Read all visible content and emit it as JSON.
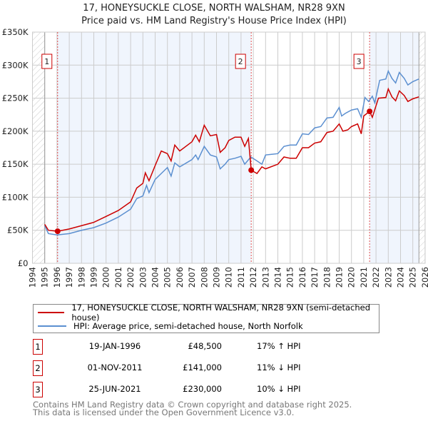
{
  "title": "17, HONEYSUCKLE CLOSE, NORTH WALSHAM, NR28 9XN",
  "subtitle": "Price paid vs. HM Land Registry's House Price Index (HPI)",
  "chart_data": {
    "type": "line",
    "title": "17, HONEYSUCKLE CLOSE, NORTH WALSHAM, NR28 9XN",
    "subtitle": "Price paid vs. HM Land Registry's House Price Index (HPI)",
    "xlim": [
      1994,
      2026
    ],
    "ylim": [
      0,
      350000
    ],
    "x_ticks": [
      "1994",
      "1995",
      "1996",
      "1997",
      "1998",
      "1999",
      "2000",
      "2001",
      "2002",
      "2003",
      "2004",
      "2005",
      "2006",
      "2007",
      "2008",
      "2009",
      "2010",
      "2011",
      "2012",
      "2013",
      "2014",
      "2015",
      "2016",
      "2017",
      "2018",
      "2019",
      "2020",
      "2021",
      "2022",
      "2023",
      "2024",
      "2025",
      "2026"
    ],
    "y_ticks": [
      {
        "v": 0,
        "label": "£0"
      },
      {
        "v": 50000,
        "label": "£50K"
      },
      {
        "v": 100000,
        "label": "£100K"
      },
      {
        "v": 150000,
        "label": "£150K"
      },
      {
        "v": 200000,
        "label": "£200K"
      },
      {
        "v": 250000,
        "label": "£250K"
      },
      {
        "v": 300000,
        "label": "£300K"
      },
      {
        "v": 350000,
        "label": "£350K"
      }
    ],
    "grid": true,
    "series": [
      {
        "name": "17, HONEYSUCKLE CLOSE, NORTH WALSHAM, NR28 9XN (semi-detached house)",
        "color": "#cc0000",
        "points": [
          [
            1995,
            59
          ],
          [
            1995.3,
            50
          ],
          [
            1996.05,
            48.5
          ],
          [
            1997,
            52
          ],
          [
            1998,
            57
          ],
          [
            1999,
            62
          ],
          [
            2000,
            71
          ],
          [
            2001,
            80
          ],
          [
            2002,
            93
          ],
          [
            2002.5,
            114
          ],
          [
            2003,
            121
          ],
          [
            2003.2,
            137
          ],
          [
            2003.5,
            125
          ],
          [
            2004,
            148
          ],
          [
            2004.5,
            170
          ],
          [
            2005,
            166
          ],
          [
            2005.3,
            155
          ],
          [
            2005.6,
            179
          ],
          [
            2006,
            170
          ],
          [
            2007,
            184
          ],
          [
            2007.3,
            194
          ],
          [
            2007.6,
            184
          ],
          [
            2008,
            209
          ],
          [
            2008.5,
            193
          ],
          [
            2009,
            195
          ],
          [
            2009.3,
            168
          ],
          [
            2009.7,
            175
          ],
          [
            2010,
            186
          ],
          [
            2010.5,
            191
          ],
          [
            2011,
            191
          ],
          [
            2011.3,
            177
          ],
          [
            2011.6,
            189
          ],
          [
            2011.83,
            141
          ],
          [
            2012.3,
            136
          ],
          [
            2012.7,
            146
          ],
          [
            2013,
            143
          ],
          [
            2014,
            150
          ],
          [
            2014.5,
            161
          ],
          [
            2015,
            159
          ],
          [
            2015.5,
            159
          ],
          [
            2016,
            175
          ],
          [
            2016.5,
            175
          ],
          [
            2017,
            182
          ],
          [
            2017.5,
            184
          ],
          [
            2018,
            198
          ],
          [
            2018.5,
            200
          ],
          [
            2019,
            211
          ],
          [
            2019.3,
            200
          ],
          [
            2019.7,
            202
          ],
          [
            2020,
            207
          ],
          [
            2020.5,
            211
          ],
          [
            2020.8,
            196
          ],
          [
            2021,
            223
          ],
          [
            2021.48,
            230
          ],
          [
            2021.7,
            221
          ],
          [
            2022.2,
            250
          ],
          [
            2022.8,
            251
          ],
          [
            2023,
            264
          ],
          [
            2023.3,
            252
          ],
          [
            2023.6,
            246
          ],
          [
            2023.9,
            261
          ],
          [
            2024.3,
            254
          ],
          [
            2024.6,
            245
          ],
          [
            2025,
            249
          ],
          [
            2025.5,
            252
          ]
        ]
      },
      {
        "name": "HPI: Average price, semi-detached house, North Norfolk",
        "color": "#5b8fd0",
        "points": [
          [
            1995,
            57
          ],
          [
            1995.3,
            45
          ],
          [
            1996,
            43
          ],
          [
            1997,
            45
          ],
          [
            1998,
            50
          ],
          [
            1999,
            54
          ],
          [
            2000,
            61
          ],
          [
            2001,
            70
          ],
          [
            2002,
            82
          ],
          [
            2002.5,
            98
          ],
          [
            2003,
            102
          ],
          [
            2003.3,
            118
          ],
          [
            2003.5,
            107
          ],
          [
            2004,
            127
          ],
          [
            2004.5,
            136
          ],
          [
            2005,
            145
          ],
          [
            2005.3,
            132
          ],
          [
            2005.6,
            152
          ],
          [
            2006,
            146
          ],
          [
            2007,
            157
          ],
          [
            2007.3,
            164
          ],
          [
            2007.5,
            157
          ],
          [
            2008,
            177
          ],
          [
            2008.5,
            164
          ],
          [
            2009,
            161
          ],
          [
            2009.3,
            143
          ],
          [
            2009.7,
            150
          ],
          [
            2010,
            157
          ],
          [
            2010.5,
            159
          ],
          [
            2011,
            162
          ],
          [
            2011.3,
            150
          ],
          [
            2011.8,
            161
          ],
          [
            2012.3,
            155
          ],
          [
            2012.7,
            150
          ],
          [
            2013,
            164
          ],
          [
            2014,
            166
          ],
          [
            2014.5,
            177
          ],
          [
            2015,
            179
          ],
          [
            2015.5,
            179
          ],
          [
            2016,
            196
          ],
          [
            2016.5,
            195
          ],
          [
            2017,
            205
          ],
          [
            2017.5,
            207
          ],
          [
            2018,
            220
          ],
          [
            2018.5,
            221
          ],
          [
            2019,
            236
          ],
          [
            2019.2,
            223
          ],
          [
            2019.5,
            227
          ],
          [
            2020,
            232
          ],
          [
            2020.5,
            234
          ],
          [
            2020.8,
            221
          ],
          [
            2021.1,
            251
          ],
          [
            2021.4,
            245
          ],
          [
            2021.7,
            253
          ],
          [
            2021.9,
            243
          ],
          [
            2022.3,
            277
          ],
          [
            2022.8,
            279
          ],
          [
            2023,
            291
          ],
          [
            2023.3,
            280
          ],
          [
            2023.6,
            273
          ],
          [
            2023.9,
            289
          ],
          [
            2024.3,
            280
          ],
          [
            2024.6,
            270
          ],
          [
            2025,
            275
          ],
          [
            2025.5,
            279
          ]
        ]
      }
    ],
    "sales": [
      {
        "n": "1",
        "x": 1996.05,
        "v": 48.5
      },
      {
        "n": "2",
        "x": 2011.83,
        "v": 141
      },
      {
        "n": "3",
        "x": 2021.48,
        "v": 230
      }
    ]
  },
  "legend": {
    "red": "17, HONEYSUCKLE CLOSE, NORTH WALSHAM, NR28 9XN (semi-detached house)",
    "blue": "HPI: Average price, semi-detached house, North Norfolk"
  },
  "table": [
    {
      "n": "1",
      "date": "19-JAN-1996",
      "price": "£48,500",
      "hpi": "17% ↑ HPI"
    },
    {
      "n": "2",
      "date": "01-NOV-2011",
      "price": "£141,000",
      "hpi": "11% ↓ HPI"
    },
    {
      "n": "3",
      "date": "25-JUN-2021",
      "price": "£230,000",
      "hpi": "10% ↓ HPI"
    }
  ],
  "footer": [
    "Contains HM Land Registry data © Crown copyright and database right 2025.",
    "This data is licensed under the Open Government Licence v3.0."
  ]
}
